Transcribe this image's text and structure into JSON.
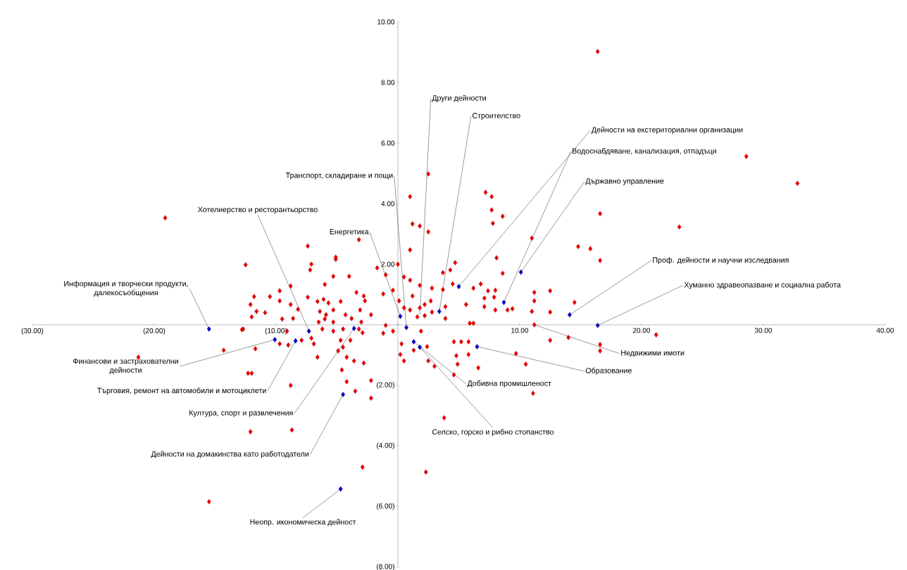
{
  "chart_data": {
    "type": "scatter",
    "marker": "diamond",
    "xlim": [
      -30,
      40
    ],
    "ylim": [
      -8,
      10
    ],
    "xticks": [
      {
        "value": -30,
        "label": "(30.00)"
      },
      {
        "value": -20,
        "label": "(20.00)"
      },
      {
        "value": -10,
        "label": "(10.00)"
      },
      {
        "value": 0,
        "label": null
      },
      {
        "value": 10,
        "label": "10.00"
      },
      {
        "value": 20,
        "label": "20.00"
      },
      {
        "value": 30,
        "label": "30.00"
      },
      {
        "value": 40,
        "label": "40.00"
      }
    ],
    "yticks": [
      {
        "value": -8,
        "label": "(8.00)"
      },
      {
        "value": -6,
        "label": "(6.00)"
      },
      {
        "value": -4,
        "label": "(4.00)"
      },
      {
        "value": -2,
        "label": "(2.00)"
      },
      {
        "value": 0,
        "label": null
      },
      {
        "value": 2,
        "label": "2.00"
      },
      {
        "value": 4,
        "label": "4.00"
      },
      {
        "value": 6,
        "label": "6.00"
      },
      {
        "value": 8,
        "label": "8.00"
      },
      {
        "value": 10,
        "label": "10.00"
      }
    ],
    "series": [
      {
        "color": "#e00000",
        "x": [
          -12.5,
          -7.4,
          -3.2,
          -7.1,
          -7.2,
          -5.1,
          -5.1,
          -5.3,
          -4.0,
          -6.0,
          -8.8,
          -1.7,
          -1.0,
          0.0,
          -0.4,
          -1.2,
          -3.4,
          -2.8,
          -2.7,
          -7.4,
          -9.7,
          -11.8,
          -10.5,
          -9.7,
          -8.8,
          -8.2,
          -12.1,
          -11.6,
          -10.9,
          -12.0,
          -9.5,
          -8.6,
          -6.6,
          -6.1,
          -5.7,
          -6.4,
          -5.9,
          -5.3,
          -6.5,
          -6.0,
          -5.3,
          -6.2,
          -5.3,
          -4.7,
          -4.3,
          -3.8,
          -3.1,
          -3.0,
          -3.2,
          -2.2,
          -1.0,
          -0.4,
          -1.2,
          0.1,
          0.5,
          -12.8,
          -9.1,
          -4.5,
          2.5,
          1.0,
          1.2,
          1.8,
          2.5,
          1.0,
          0.5,
          1.0,
          1.8,
          2.8,
          3.7,
          3.7,
          4.3,
          4.7,
          4.5,
          1.2,
          1.0,
          1.8,
          2.2,
          2.7,
          1.6,
          2.2,
          2.8,
          3.9,
          3.9,
          5.6,
          6.2,
          6.8,
          7.4,
          7.1,
          8.0,
          7.9,
          7.1,
          8.0,
          9.0,
          9.4,
          8.1,
          8.6,
          7.2,
          7.7,
          7.7,
          8.6,
          7.8,
          11.0,
          11.2,
          11.2,
          12.5,
          11.0,
          12.5,
          14.5,
          14.8,
          15.8,
          16.6,
          16.6,
          5.9,
          6.2,
          1.9,
          -12.7,
          -14.3,
          -11.7,
          -9.7,
          -9.0,
          -7.9,
          -7.1,
          -6.9,
          -6.6,
          -4.9,
          -4.5,
          -4.7,
          -3.9,
          -4.2,
          -3.6,
          -2.8,
          -4.6,
          -4.2,
          -3.5,
          -2.2,
          -2.2,
          -12.3,
          -12.0,
          -8.8,
          -12.1,
          -8.7,
          -2.9,
          -2.9,
          0.3,
          0.2,
          0.5,
          1.3,
          2.4,
          2.5,
          3.0,
          4.6,
          4.6,
          5.2,
          5.8,
          4.8,
          4.9,
          5.8,
          6.6,
          14.0,
          12.5,
          9.7,
          10.5,
          16.6,
          16.6,
          11.1,
          3.8,
          2.3,
          16.4,
          28.6,
          32.8,
          23.1,
          -19.1,
          -21.3,
          -15.5,
          21.2,
          11.2
        ],
        "values": [
          1.98,
          2.6,
          2.81,
          2.0,
          1.81,
          2.23,
          2.16,
          1.6,
          1.6,
          1.33,
          1.28,
          1.88,
          1.65,
          2.0,
          1.14,
          1.02,
          1.07,
          0.95,
          0.79,
          0.91,
          1.12,
          0.93,
          0.93,
          0.79,
          0.67,
          0.51,
          0.67,
          0.44,
          0.4,
          0.26,
          0.19,
          0.21,
          0.77,
          0.84,
          0.72,
          0.44,
          0.33,
          0.49,
          0.09,
          0.19,
          0.09,
          -0.14,
          -0.21,
          0.77,
          0.33,
          0.21,
          0.49,
          0.09,
          -0.14,
          0.33,
          -0.02,
          -0.21,
          -0.28,
          0.79,
          0.56,
          -0.16,
          -0.21,
          -0.14,
          4.98,
          4.23,
          3.33,
          3.26,
          3.07,
          2.47,
          1.58,
          1.47,
          1.3,
          1.21,
          1.16,
          1.72,
          1.81,
          2.05,
          1.35,
          0.95,
          0.49,
          0.56,
          0.67,
          0.79,
          0.26,
          0.3,
          0.42,
          0.6,
          0.21,
          0.67,
          1.21,
          1.35,
          1.12,
          0.88,
          1.14,
          0.91,
          0.6,
          0.49,
          0.49,
          0.53,
          2.21,
          1.7,
          4.37,
          4.23,
          3.79,
          3.58,
          3.35,
          2.86,
          1.07,
          0.79,
          1.12,
          0.44,
          0.42,
          0.74,
          2.58,
          2.51,
          3.67,
          2.12,
          0.05,
          0.05,
          -0.21,
          -0.14,
          -0.84,
          -0.79,
          -0.63,
          -0.67,
          -0.51,
          -0.44,
          -0.63,
          -1.07,
          -0.86,
          -0.74,
          -0.51,
          -0.51,
          -1.07,
          -1.19,
          -1.26,
          -1.49,
          -1.88,
          -2.19,
          -1.84,
          -2.42,
          -1.6,
          -1.6,
          -2.0,
          -3.53,
          -3.47,
          -4.7,
          -0.26,
          -0.63,
          -0.98,
          -1.19,
          -0.84,
          -0.72,
          -1.19,
          -1.37,
          -1.65,
          -0.56,
          -0.56,
          -0.56,
          -1.02,
          -1.3,
          -0.98,
          -1.42,
          -0.42,
          -0.51,
          -0.95,
          -1.3,
          -0.65,
          -0.86,
          -2.26,
          -3.07,
          -4.86,
          9.02,
          5.56,
          4.67,
          3.23,
          3.53,
          -1.07,
          -5.84,
          -0.33,
          0.0
        ]
      },
      {
        "color": "#0000c0",
        "x": [
          -15.5,
          -10.1,
          -8.4,
          -7.3,
          -3.6,
          -4.5,
          -4.7,
          0.2,
          0.7,
          1.3,
          1.8,
          3.4,
          5.0,
          8.7,
          10.1,
          14.1,
          16.4,
          6.5
        ],
        "values": [
          -0.14,
          -0.49,
          -0.53,
          -0.21,
          -0.12,
          -2.3,
          -5.42,
          0.28,
          -0.09,
          -0.56,
          -0.74,
          0.44,
          1.26,
          0.74,
          1.74,
          0.33,
          -0.02,
          -0.72
        ]
      }
    ],
    "annotations": [
      {
        "text": "Информация и творчески продукти, далекосъобщения",
        "x": -15.5,
        "y": -0.14
      },
      {
        "text": "Финансови и застрахователни дейности",
        "x": -10.1,
        "y": -0.49
      },
      {
        "text": "Търговия, ремонт на автомобили и мотоциклети",
        "x": -8.4,
        "y": -0.53
      },
      {
        "text": "Хотелиерство и ресторантьорство",
        "x": -7.3,
        "y": -0.21
      },
      {
        "text": "Култура, спорт и развлечения",
        "x": -3.6,
        "y": -0.12
      },
      {
        "text": "Дейности на домакинства като работодатели",
        "x": -4.5,
        "y": -2.3
      },
      {
        "text": "Неопр. икономическа дейност",
        "x": -4.7,
        "y": -5.42
      },
      {
        "text": "Енергетика",
        "x": 0.2,
        "y": 0.28
      },
      {
        "text": "Транспорт, складиране и пощи",
        "x": 0.7,
        "y": -0.09
      },
      {
        "text": "Добивна промишленост",
        "x": 1.3,
        "y": -0.56
      },
      {
        "text": "Селско, горско и рибно стопанство",
        "x": 1.8,
        "y": -0.74
      },
      {
        "text": "Други дейности",
        "x": 1.8,
        "y": 0.33
      },
      {
        "text": "Строителство",
        "x": 3.4,
        "y": 0.44
      },
      {
        "text": "Дейности на екстериториални организации",
        "x": 5.0,
        "y": 1.26
      },
      {
        "text": "Водоснабдяване, канализация, отпадъци",
        "x": 8.7,
        "y": 0.74
      },
      {
        "text": "Държавно управление",
        "x": 10.1,
        "y": 1.74
      },
      {
        "text": "Проф. дейности и научни изследвания",
        "x": 14.1,
        "y": 0.33
      },
      {
        "text": "Хуманно здравеопазване и социална работа",
        "x": 16.4,
        "y": -0.02
      },
      {
        "text": "Недвижими имоти",
        "x": 11.2,
        "y": 0.0
      },
      {
        "text": "Образование",
        "x": 6.5,
        "y": -0.72
      }
    ]
  }
}
